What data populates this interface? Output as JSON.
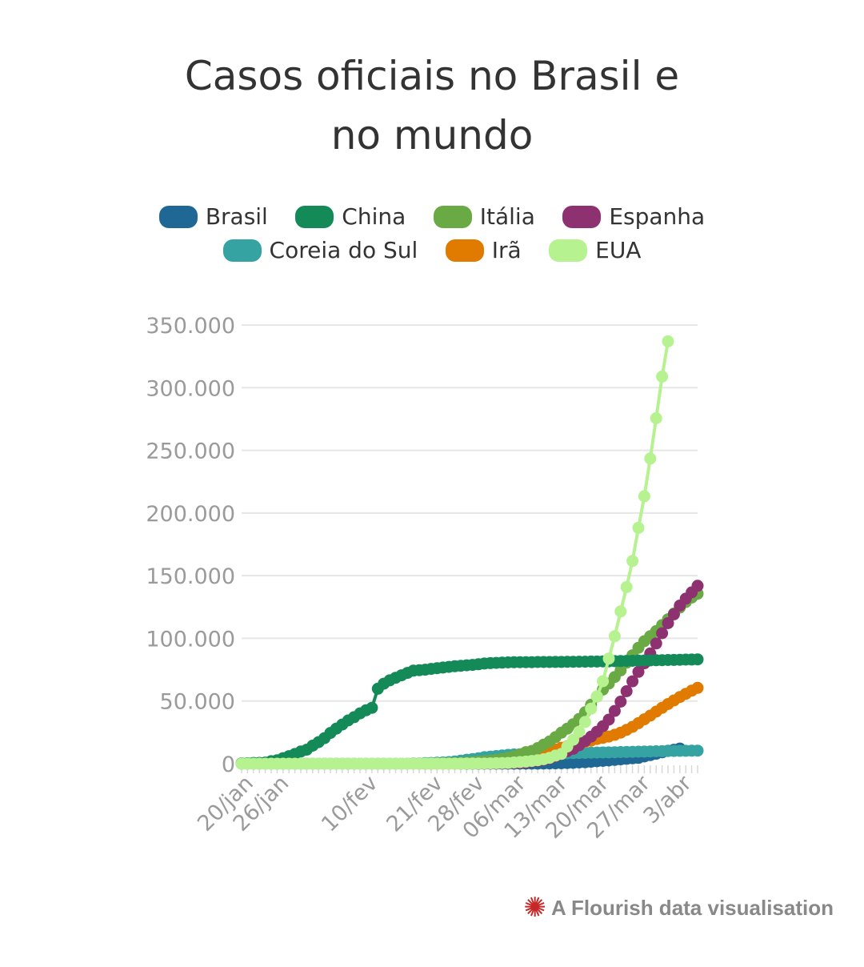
{
  "chart_data": {
    "type": "line",
    "title_lines": [
      "Casos oficiais no Brasil e",
      "no mundo"
    ],
    "ylim": [
      0,
      350000
    ],
    "yticks": [
      0,
      50000,
      100000,
      150000,
      200000,
      250000,
      300000,
      350000
    ],
    "ytick_labels": [
      "0",
      "50.000",
      "100.000",
      "150.000",
      "200.000",
      "250.000",
      "300.000",
      "350.000"
    ],
    "xdomain_days": [
      0,
      77
    ],
    "xticks": [
      {
        "day": 0,
        "label": "20/jan"
      },
      {
        "day": 6,
        "label": "26/jan"
      },
      {
        "day": 21,
        "label": "10/fev"
      },
      {
        "day": 32,
        "label": "21/fev"
      },
      {
        "day": 39,
        "label": "28/fev"
      },
      {
        "day": 46,
        "label": "06/mar"
      },
      {
        "day": 53,
        "label": "13/mar"
      },
      {
        "day": 60,
        "label": "20/mar"
      },
      {
        "day": 67,
        "label": "27/mar"
      },
      {
        "day": 74,
        "label": "3/abr"
      }
    ],
    "series": [
      {
        "name": "Brasil",
        "color": "#1f6896",
        "start_day": 37,
        "values": [
          1,
          1,
          2,
          2,
          2,
          2,
          3,
          8,
          13,
          20,
          25,
          31,
          38,
          52,
          121,
          200,
          234,
          346,
          529,
          640,
          970,
          1178,
          1546,
          1924,
          2247,
          2554,
          2985,
          3417,
          3904,
          4256,
          4579,
          5717,
          6836,
          7910,
          9056,
          10278,
          11130,
          12056
        ]
      },
      {
        "name": "China",
        "color": "#138a57",
        "start_day": 0,
        "values": [
          278,
          326,
          547,
          639,
          916,
          2000,
          2700,
          4400,
          6000,
          7700,
          9700,
          11200,
          14400,
          17200,
          20400,
          24500,
          28000,
          31200,
          34500,
          37100,
          40200,
          42600,
          44600,
          59800,
          63800,
          66500,
          68500,
          70500,
          72400,
          74200,
          74600,
          75000,
          75600,
          76200,
          76700,
          77200,
          77700,
          78100,
          78500,
          78800,
          79300,
          79900,
          80200,
          80400,
          80600,
          80800,
          80900,
          81000,
          81000,
          81000,
          81100,
          81100,
          81100,
          81200,
          81200,
          81300,
          81300,
          81400,
          81400,
          81500,
          81500,
          81600,
          81700,
          81800,
          81900,
          82000,
          82100,
          82200,
          82300,
          82400,
          82500,
          82600,
          82700,
          82800,
          82900,
          83000,
          83100,
          83200
        ]
      },
      {
        "name": "Itália",
        "color": "#6aaa45",
        "start_day": 30,
        "values": [
          3,
          20,
          62,
          155,
          229,
          322,
          453,
          655,
          888,
          1128,
          1694,
          2036,
          2502,
          3089,
          3858,
          4636,
          5883,
          7375,
          9172,
          10149,
          12462,
          15113,
          17660,
          21157,
          24747,
          27980,
          31506,
          35713,
          41035,
          47021,
          53578,
          59138,
          63927,
          69176,
          74386,
          80589,
          86498,
          92472,
          97689,
          101739,
          105792,
          110574,
          115242,
          119827,
          124632,
          128948,
          132547,
          135586
        ]
      },
      {
        "name": "Espanha",
        "color": "#8e3170",
        "start_day": 40,
        "values": [
          83,
          114,
          151,
          200,
          261,
          374,
          430,
          589,
          1024,
          1639,
          2140,
          3004,
          4231,
          5753,
          7753,
          9942,
          11826,
          14769,
          18077,
          21571,
          25496,
          29909,
          35136,
          42058,
          49515,
          57786,
          65719,
          73235,
          80110,
          87956,
          95923,
          104118,
          112065,
          119199,
          126168,
          131646,
          136675,
          141942
        ]
      },
      {
        "name": "Coreia do Sul",
        "color": "#36a3a3",
        "start_day": 0,
        "values": [
          1,
          1,
          2,
          2,
          3,
          4,
          4,
          4,
          4,
          11,
          12,
          15,
          15,
          16,
          19,
          23,
          24,
          24,
          25,
          27,
          28,
          28,
          28,
          28,
          28,
          29,
          30,
          31,
          31,
          104,
          204,
          433,
          602,
          833,
          977,
          1261,
          1766,
          2337,
          3150,
          3736,
          4335,
          5186,
          5621,
          6088,
          6593,
          7041,
          7314,
          7478,
          7513,
          7755,
          7869,
          7979,
          8086,
          8162,
          8236,
          8320,
          8413,
          8565,
          8652,
          8799,
          8897,
          8961,
          9037,
          9137,
          9241,
          9332,
          9478,
          9583,
          9661,
          9786,
          9887,
          9976,
          10062,
          10156,
          10237,
          10284,
          10331,
          10384
        ]
      },
      {
        "name": "Irã",
        "color": "#e07b00",
        "start_day": 30,
        "values": [
          2,
          5,
          18,
          28,
          43,
          61,
          95,
          139,
          245,
          388,
          593,
          978,
          1501,
          2336,
          2922,
          3513,
          4747,
          5823,
          6566,
          7161,
          8042,
          9000,
          10075,
          11364,
          12729,
          13938,
          14991,
          16169,
          17361,
          18407,
          19644,
          20610,
          21638,
          23049,
          24811,
          27017,
          29406,
          32332,
          35408,
          38309,
          41495,
          44605,
          47593,
          50468,
          53183,
          55743,
          58226,
          60500
        ]
      },
      {
        "name": "EUA",
        "color": "#b6f28f",
        "start_day": 0,
        "values": [
          1,
          1,
          2,
          2,
          5,
          5,
          5,
          5,
          5,
          7,
          8,
          8,
          11,
          11,
          11,
          11,
          11,
          11,
          12,
          12,
          13,
          13,
          13,
          13,
          13,
          13,
          13,
          13,
          15,
          15,
          15,
          51,
          51,
          57,
          58,
          60,
          68,
          74,
          98,
          118,
          149,
          217,
          262,
          402,
          518,
          583,
          959,
          1281,
          1663,
          2179,
          2726,
          3499,
          4632,
          6421,
          7786,
          13680,
          19101,
          25493,
          33276,
          43847,
          53740,
          65778,
          83836,
          101657,
          121478,
          140886,
          161807,
          188172,
          213372,
          243453,
          275586,
          308850,
          337000
        ]
      }
    ]
  },
  "legend_rows": [
    [
      {
        "label": "Brasil",
        "color": "#1f6896"
      },
      {
        "label": "China",
        "color": "#138a57"
      },
      {
        "label": "Itália",
        "color": "#6aaa45"
      },
      {
        "label": "Espanha",
        "color": "#8e3170"
      }
    ],
    [
      {
        "label": "Coreia do Sul",
        "color": "#36a3a3"
      },
      {
        "label": "Irã",
        "color": "#e07b00"
      },
      {
        "label": "EUA",
        "color": "#b6f28f"
      }
    ]
  ],
  "attribution": {
    "text": "A Flourish data visualisation",
    "logo_icon": "flourish-burst-icon",
    "logo_color": "#c62828"
  }
}
